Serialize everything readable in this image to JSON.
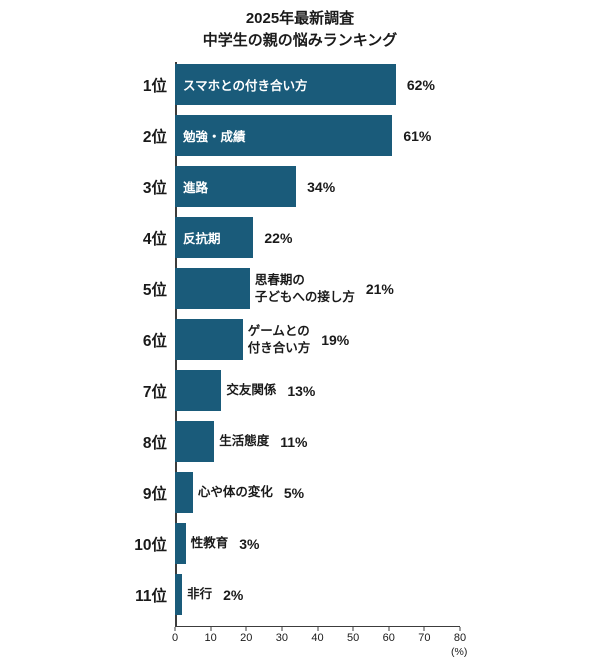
{
  "title": {
    "line1": "2025年最新調査",
    "line2": "中学生の親の悩みランキング"
  },
  "axis": {
    "ticks": [
      "0",
      "10",
      "20",
      "30",
      "40",
      "50",
      "60",
      "70",
      "80"
    ],
    "max": 80,
    "unit_label": "(%)"
  },
  "colors": {
    "bar": "#1a5b7a",
    "inside_label": "#ffffff",
    "text": "#1a1a1a",
    "axis_line": "#3c3c3c"
  },
  "chart_data": {
    "type": "bar",
    "orientation": "horizontal",
    "title": "2025年最新調査 中学生の親の悩みランキング",
    "xlabel": "(%)",
    "xlim": [
      0,
      80
    ],
    "grid": false,
    "legend": "none",
    "categories": [
      "1位",
      "2位",
      "3位",
      "4位",
      "5位",
      "6位",
      "7位",
      "8位",
      "9位",
      "10位",
      "11位"
    ],
    "values": [
      62,
      61,
      34,
      22,
      21,
      19,
      13,
      11,
      5,
      3,
      2
    ],
    "items": [
      {
        "rank": "1位",
        "label": "スマホとの付き合い方",
        "value": 62,
        "value_label": "62%",
        "label_position": "inside"
      },
      {
        "rank": "2位",
        "label": "勉強・成績",
        "value": 61,
        "value_label": "61%",
        "label_position": "inside"
      },
      {
        "rank": "3位",
        "label": "進路",
        "value": 34,
        "value_label": "34%",
        "label_position": "inside"
      },
      {
        "rank": "4位",
        "label": "反抗期",
        "value": 22,
        "value_label": "22%",
        "label_position": "inside"
      },
      {
        "rank": "5位",
        "label": "思春期の\n子どもへの接し方",
        "value": 21,
        "value_label": "21%",
        "label_position": "outside"
      },
      {
        "rank": "6位",
        "label": "ゲームとの\n付き合い方",
        "value": 19,
        "value_label": "19%",
        "label_position": "outside"
      },
      {
        "rank": "7位",
        "label": "交友関係",
        "value": 13,
        "value_label": "13%",
        "label_position": "outside"
      },
      {
        "rank": "8位",
        "label": "生活態度",
        "value": 11,
        "value_label": "11%",
        "label_position": "outside"
      },
      {
        "rank": "9位",
        "label": "心や体の変化",
        "value": 5,
        "value_label": "5%",
        "label_position": "outside"
      },
      {
        "rank": "10位",
        "label": "性教育",
        "value": 3,
        "value_label": "3%",
        "label_position": "outside"
      },
      {
        "rank": "11位",
        "label": "非行",
        "value": 2,
        "value_label": "2%",
        "label_position": "outside"
      }
    ]
  }
}
